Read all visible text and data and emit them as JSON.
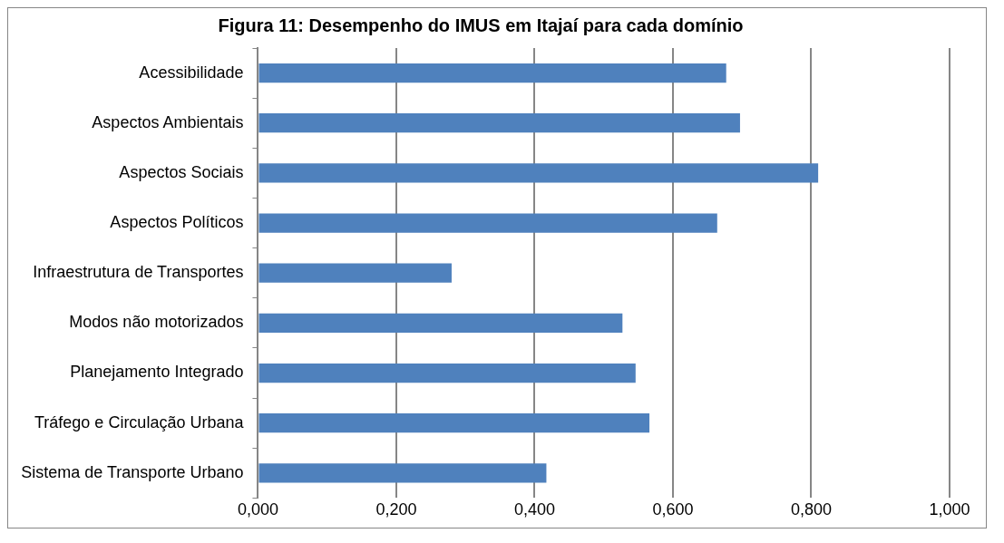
{
  "chart_data": {
    "type": "bar",
    "orientation": "horizontal",
    "title": "Figura 11: Desempenho do IMUS em Itajaí para cada domínio",
    "categories": [
      "Acessibilidade",
      "Aspectos Ambientais",
      "Aspectos Sociais",
      "Aspectos Políticos",
      "Infraestrutura de Transportes",
      "Modos não motorizados",
      "Planejamento Integrado",
      "Tráfego e Circulação Urbana",
      "Sistema de Transporte Urbano"
    ],
    "values": [
      0.677,
      0.697,
      0.81,
      0.664,
      0.28,
      0.527,
      0.546,
      0.566,
      0.417
    ],
    "color": "#4f81bd",
    "xlim": [
      0,
      1
    ],
    "xticks": [
      {
        "value": 0,
        "label": "0,000"
      },
      {
        "value": 0.2,
        "label": "0,200"
      },
      {
        "value": 0.4,
        "label": "0,400"
      },
      {
        "value": 0.6,
        "label": "0,600"
      },
      {
        "value": 0.8,
        "label": "0,800"
      },
      {
        "value": 1,
        "label": "1,000"
      }
    ],
    "grid": "x",
    "legend": false
  }
}
